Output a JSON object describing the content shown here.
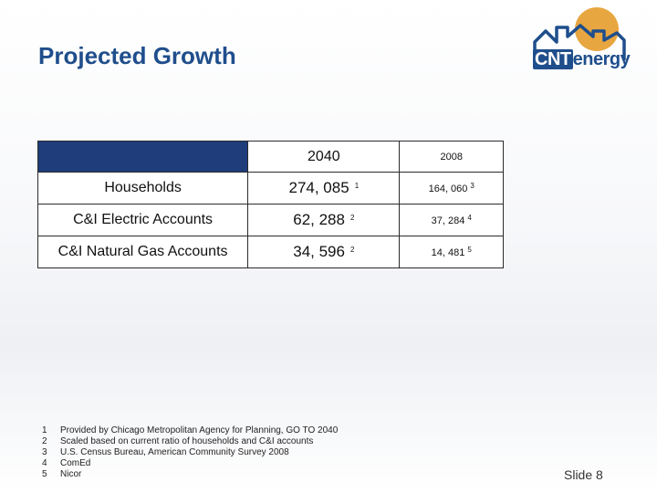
{
  "slide": {
    "title": "Projected Growth",
    "slide_number": "Slide 8"
  },
  "logo": {
    "text_a": "CNT",
    "text_b": "energy"
  },
  "colors": {
    "title": "#1f4e8c",
    "header_bar": "#1e3d7a",
    "sun": "#e8a640"
  },
  "table": {
    "columns": [
      "",
      "2040",
      "2008"
    ],
    "rows": [
      {
        "label": "Households",
        "v2040": "274, 085",
        "fn2040": "1",
        "v2008": "164, 060",
        "fn2008": "3"
      },
      {
        "label": "C&I Electric Accounts",
        "v2040": "62, 288",
        "fn2040": "2",
        "v2008": "37, 284",
        "fn2008": "4"
      },
      {
        "label": "C&I Natural Gas Accounts",
        "v2040": "34, 596",
        "fn2040": "2",
        "v2008": "14, 481",
        "fn2008": "5"
      }
    ]
  },
  "footnotes": [
    {
      "num": "1",
      "text": "Provided by Chicago Metropolitan Agency for Planning, GO TO 2040"
    },
    {
      "num": "2",
      "text": "Scaled based on current ratio of households and C&I accounts"
    },
    {
      "num": "3",
      "text": "U.S. Census Bureau, American Community Survey 2008"
    },
    {
      "num": "4",
      "text": "ComEd"
    },
    {
      "num": "5",
      "text": "Nicor"
    }
  ]
}
